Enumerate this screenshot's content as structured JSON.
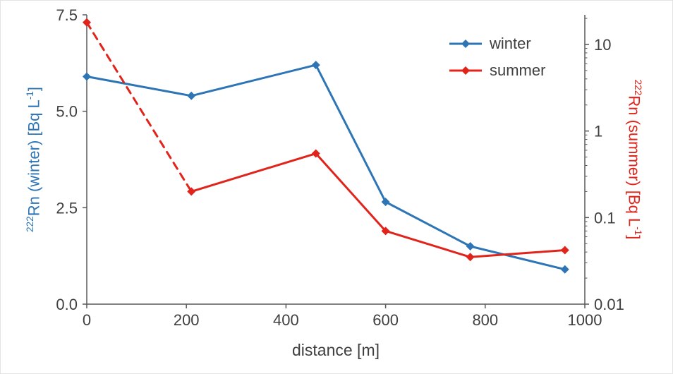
{
  "chart_data": {
    "type": "line",
    "title": "",
    "xlabel": "distance [m]",
    "xlim": [
      0,
      1000
    ],
    "x_ticks": [
      0,
      200,
      400,
      600,
      800,
      1000
    ],
    "grid": false,
    "legend_position": "top-right-inside",
    "axis_line_color": "#595959",
    "tick_text_color": "#3f3f3f",
    "left_axis": {
      "label_sup": "222",
      "label_main": "Rn (winter) [Bq L",
      "label_exp": "-1",
      "label_close": "]",
      "scale": "linear",
      "ylim": [
        0,
        7.5
      ],
      "tick_values": [
        0,
        2.5,
        5,
        7.5
      ],
      "tick_labels": [
        "0.0",
        "2.5",
        "5.0",
        "7.5"
      ],
      "color": "#2e75b6"
    },
    "right_axis": {
      "label_sup": "222",
      "label_main": "Rn (summer) [Bq L",
      "label_exp": "-1",
      "label_close": "]",
      "scale": "log",
      "ylim": [
        0.01,
        22
      ],
      "tick_values": [
        10,
        1,
        0.1,
        0.01
      ],
      "tick_labels": [
        "10",
        "1",
        "0.1",
        "0.01"
      ],
      "color": "#e0241b"
    },
    "x": [
      0,
      210,
      460,
      600,
      770,
      960
    ],
    "series": [
      {
        "name": "winter",
        "axis": "left",
        "color": "#2e75b6",
        "marker": "diamond",
        "values": [
          5.9,
          5.4,
          6.2,
          2.65,
          1.5,
          0.9
        ],
        "dashed_segments": []
      },
      {
        "name": "summer",
        "axis": "right",
        "color": "#e0241b",
        "marker": "diamond",
        "values": [
          18,
          0.2,
          0.55,
          0.07,
          0.035,
          0.042
        ],
        "dashed_segments": [
          0
        ]
      }
    ]
  }
}
